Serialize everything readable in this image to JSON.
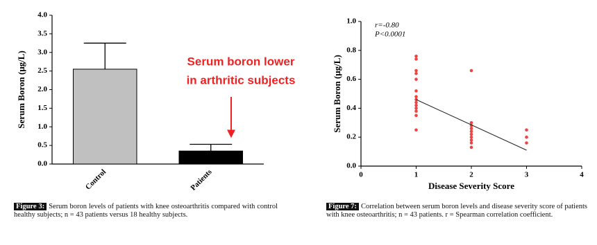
{
  "chart_data": [
    {
      "type": "bar",
      "ylabel": "Serum Boron (μg/L)",
      "categories": [
        "Control",
        "Patients"
      ],
      "values": [
        2.55,
        0.35
      ],
      "errors": [
        0.7,
        0.18
      ],
      "colors": [
        "#c0c0c0",
        "#000000"
      ],
      "ylim": [
        0,
        4
      ],
      "yticks": [
        {
          "value": 0,
          "label": "0.0"
        },
        {
          "value": 0.5,
          "label": "0.5"
        },
        {
          "value": 1,
          "label": "1.0"
        },
        {
          "value": 1.5,
          "label": "1.5"
        },
        {
          "value": 2,
          "label": "2.0"
        },
        {
          "value": 2.5,
          "label": "2.5"
        },
        {
          "value": 3,
          "label": "3.0"
        },
        {
          "value": 3.5,
          "label": "3.5"
        },
        {
          "value": 4,
          "label": "4.0"
        }
      ],
      "annotation": [
        "Serum boron lower",
        "in arthritic subjects"
      ],
      "annotation_color": "#ee2222"
    },
    {
      "type": "scatter",
      "ylabel": "Serum Boron (μg/L)",
      "xlabel": "Disease Severity Score",
      "x": [
        1,
        1,
        1,
        1,
        1,
        1,
        1,
        1,
        1,
        1,
        1,
        1,
        1,
        1,
        2,
        2,
        2,
        2,
        2,
        2,
        2,
        2,
        2,
        2,
        3,
        3,
        3
      ],
      "values": [
        0.76,
        0.74,
        0.66,
        0.64,
        0.6,
        0.52,
        0.48,
        0.46,
        0.44,
        0.42,
        0.4,
        0.38,
        0.35,
        0.25,
        0.66,
        0.3,
        0.28,
        0.26,
        0.24,
        0.22,
        0.2,
        0.18,
        0.16,
        0.13,
        0.25,
        0.2,
        0.16
      ],
      "color": "#ee4444",
      "fit_line": {
        "x": [
          1,
          3
        ],
        "y": [
          0.46,
          0.11
        ]
      },
      "xlim": [
        0,
        4
      ],
      "xticks": [
        0,
        1,
        2,
        3,
        4
      ],
      "ylim": [
        0,
        1
      ],
      "yticks": [
        {
          "value": 0,
          "label": "0.0"
        },
        {
          "value": 0.2,
          "label": "0.2"
        },
        {
          "value": 0.4,
          "label": "0.4"
        },
        {
          "value": 0.6,
          "label": "0.6"
        },
        {
          "value": 0.8,
          "label": "0.8"
        },
        {
          "value": 1,
          "label": "1.0"
        }
      ],
      "annotation": [
        "r=-0.80",
        "P<0.0001"
      ]
    }
  ],
  "captions": [
    {
      "label": "Figure 3:",
      "text": "Serum boron levels of patients with knee osteoarthritis compared with control healthy subjects; n = 43 patients versus 18 healthy subjects."
    },
    {
      "label": "Figure 7:",
      "text": "Correlation between serum boron levels and disease severity score of patients with knee osteoarthritis; n = 43 patients. r = Spearman correlation coefficient."
    }
  ]
}
